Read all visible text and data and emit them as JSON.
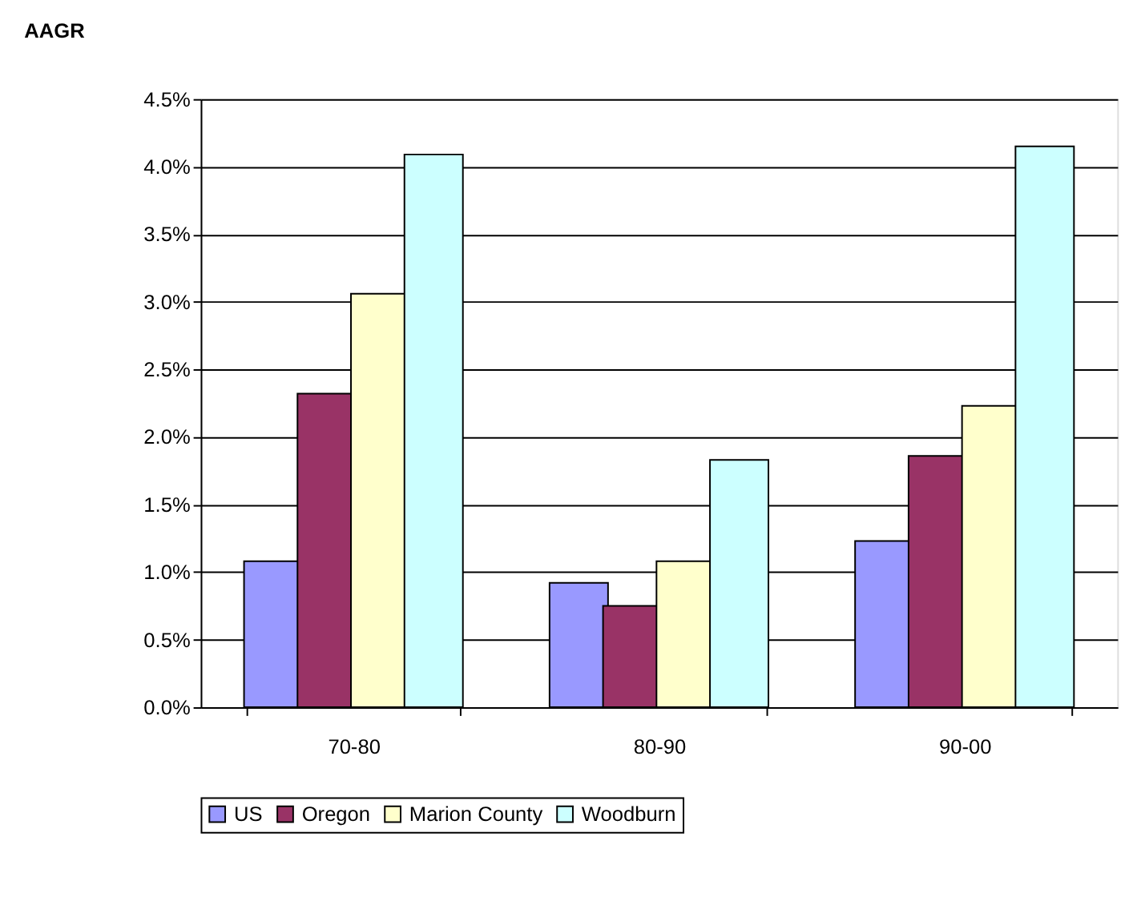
{
  "chart_data": {
    "type": "bar",
    "title": "AAGR",
    "categories": [
      "70-80",
      "80-90",
      "90-00"
    ],
    "series": [
      {
        "name": "US",
        "color": "#9999ff",
        "values": [
          1.08,
          0.92,
          1.23
        ]
      },
      {
        "name": "Oregon",
        "color": "#993366",
        "values": [
          2.32,
          0.75,
          1.86
        ]
      },
      {
        "name": "Marion County",
        "color": "#ffffcc",
        "values": [
          3.06,
          1.08,
          2.23
        ]
      },
      {
        "name": "Woodburn",
        "color": "#ccffff",
        "values": [
          4.09,
          1.83,
          4.15
        ]
      }
    ],
    "ylim": [
      0,
      4.5
    ],
    "yticks": [
      {
        "value": 0,
        "label": "0.0%"
      },
      {
        "value": 0.5,
        "label": "0.5%"
      },
      {
        "value": 1,
        "label": "1.0%"
      },
      {
        "value": 1.5,
        "label": "1.5%"
      },
      {
        "value": 2,
        "label": "2.0%"
      },
      {
        "value": 2.5,
        "label": "2.5%"
      },
      {
        "value": 3,
        "label": "3.0%"
      },
      {
        "value": 3.5,
        "label": "3.5%"
      },
      {
        "value": 4,
        "label": "4.0%"
      },
      {
        "value": 4.5,
        "label": "4.5%"
      }
    ],
    "grid": "y",
    "legend": "bottom"
  }
}
